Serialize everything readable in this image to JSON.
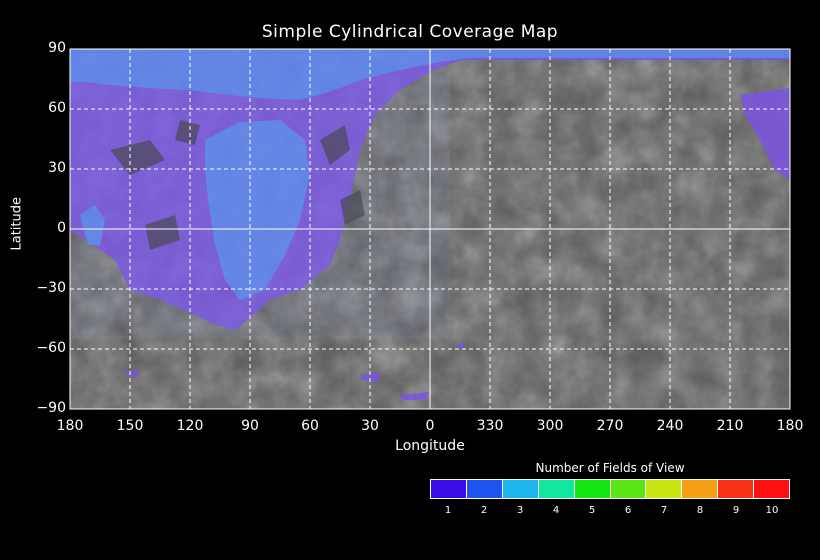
{
  "title": "Simple Cylindrical Coverage Map",
  "y_axis": {
    "label": "Latitude",
    "ticks": [
      "90",
      "60",
      "30",
      "0",
      "−30",
      "−60",
      "−90"
    ],
    "values": [
      90,
      60,
      30,
      0,
      -30,
      -60,
      -90
    ]
  },
  "x_axis": {
    "label": "Longitude",
    "ticks": [
      "180",
      "150",
      "120",
      "90",
      "60",
      "30",
      "0",
      "330",
      "300",
      "270",
      "240",
      "210",
      "180"
    ]
  },
  "legend": {
    "title": "Number of Fields of View",
    "labels": [
      "1",
      "2",
      "3",
      "4",
      "5",
      "6",
      "7",
      "8",
      "9",
      "10"
    ],
    "colors": [
      "#3a0ce6",
      "#1e55f0",
      "#1eb4f0",
      "#10e8a0",
      "#14e614",
      "#5ae614",
      "#c8e614",
      "#f5a014",
      "#f53214",
      "#ff1010"
    ]
  },
  "colors": {
    "background": "#000000",
    "terrain": "#555555",
    "coverage_1": "#7a52e6",
    "coverage_2": "#5a8ae6",
    "grid": "#ffffff"
  }
}
